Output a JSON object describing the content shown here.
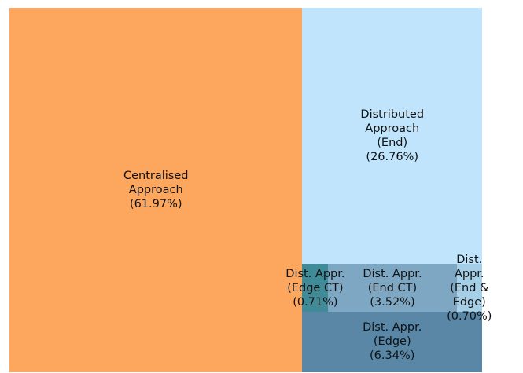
{
  "chart_data": {
    "type": "treemap",
    "categories": [
      "Centralised\nApproach",
      "Distributed\nApproach\n(End)",
      "Dist. Appr.\n(Edge CT)",
      "Dist. Appr.\n(End CT)",
      "Dist. Appr.\n(End & Edge)",
      "Dist. Appr.\n(Edge)"
    ],
    "values": [
      61.97,
      26.76,
      0.71,
      3.52,
      0.7,
      6.34
    ],
    "value_labels": [
      "(61.97%)",
      "(26.76%)",
      "(0.71%)",
      "(3.52%)",
      "(0.70%)",
      "(6.34%)"
    ],
    "colors": [
      "#fda65e",
      "#c0e4fb",
      "#3f8c98",
      "#7ea7c3",
      "#a5cee7",
      "#5a87a6"
    ]
  }
}
